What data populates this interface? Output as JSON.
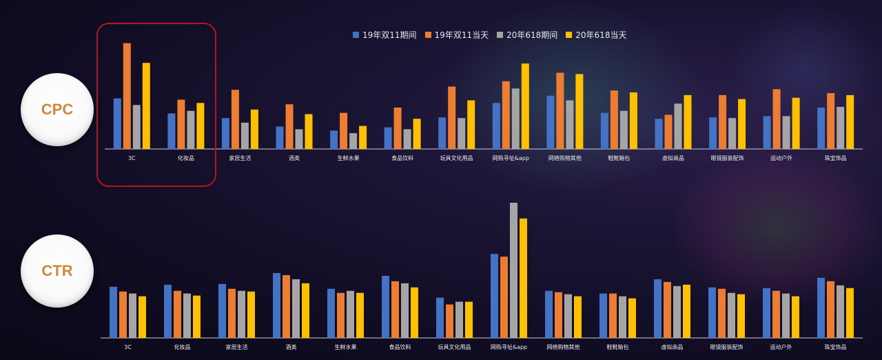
{
  "metric_labels": {
    "cpc": "CPC",
    "ctr": "CTR"
  },
  "legend": [
    {
      "name": "19年双11期间",
      "color": "#4472C4"
    },
    {
      "name": "19年双11当天",
      "color": "#ED7D31"
    },
    {
      "name": "20年618期间",
      "color": "#A5A5A5"
    },
    {
      "name": "20年618当天",
      "color": "#FFC000"
    }
  ],
  "chart_data": [
    {
      "type": "bar",
      "metric": "CPC",
      "categories": [
        "3C",
        "化妆品",
        "家居生活",
        "酒类",
        "生鲜水果",
        "食品饮料",
        "玩具文化用品",
        "网购寻址&app",
        "网络购物其他",
        "鞋靴箱包",
        "虚拟商品",
        "眼镜服装配饰",
        "运动户外",
        "珠宝饰品"
      ],
      "series": [
        {
          "name": "19年双11期间",
          "color": "#4472C4",
          "values": [
            77,
            54,
            47,
            34,
            28,
            33,
            48,
            70,
            81,
            55,
            46,
            48,
            50,
            63
          ]
        },
        {
          "name": "19年双11当天",
          "color": "#ED7D31",
          "values": [
            161,
            75,
            90,
            68,
            55,
            63,
            95,
            103,
            116,
            89,
            52,
            82,
            91,
            85
          ]
        },
        {
          "name": "20年618期间",
          "color": "#A5A5A5",
          "values": [
            67,
            58,
            40,
            30,
            24,
            30,
            47,
            92,
            74,
            58,
            69,
            47,
            50,
            64
          ]
        },
        {
          "name": "20年618当天",
          "color": "#FFC000",
          "values": [
            131,
            70,
            60,
            53,
            35,
            46,
            74,
            130,
            114,
            86,
            82,
            76,
            78,
            82
          ]
        }
      ],
      "ylim": [
        0,
        170
      ]
    },
    {
      "type": "bar",
      "metric": "CTR",
      "categories": [
        "3C",
        "化妆品",
        "家居生活",
        "酒类",
        "生鲜水果",
        "食品饮料",
        "玩具文化用品",
        "网购寻址&app",
        "网络购物其他",
        "鞋靴箱包",
        "虚拟商品",
        "眼镜服装配饰",
        "运动户外",
        "珠宝饰品"
      ],
      "series": [
        {
          "name": "19年双11期间",
          "color": "#4472C4",
          "values": [
            75,
            78,
            79,
            95,
            72,
            91,
            59,
            123,
            69,
            65,
            86,
            74,
            73,
            88
          ]
        },
        {
          "name": "19年双11当天",
          "color": "#ED7D31",
          "values": [
            68,
            69,
            72,
            92,
            66,
            83,
            49,
            119,
            67,
            65,
            82,
            72,
            69,
            83
          ]
        },
        {
          "name": "20年618期间",
          "color": "#A5A5A5",
          "values": [
            65,
            65,
            69,
            86,
            69,
            80,
            53,
            198,
            64,
            61,
            76,
            66,
            65,
            77
          ]
        },
        {
          "name": "20年618当天",
          "color": "#FFC000",
          "values": [
            61,
            62,
            68,
            80,
            66,
            74,
            53,
            175,
            61,
            58,
            78,
            64,
            61,
            73
          ]
        }
      ],
      "ylim": [
        0,
        200
      ]
    }
  ]
}
